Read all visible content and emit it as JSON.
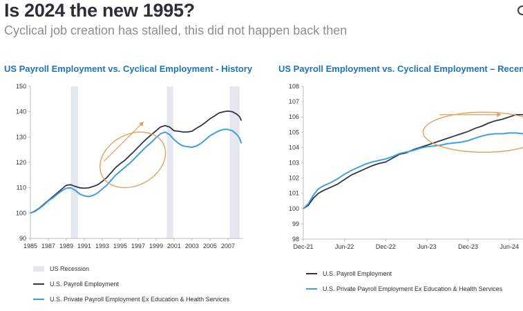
{
  "header": {
    "title": "Is 2024 the new 1995?",
    "subtitle": "Cyclical job creation has stalled, this did not happen back then"
  },
  "colors": {
    "payroll": "#2e3540",
    "private": "#3e9fe0",
    "recession": "#e4e7f0",
    "annotation": "#e1a05b",
    "axis": "#bdbdbd",
    "title": "#1f73b7"
  },
  "chart_data": [
    {
      "type": "line",
      "title": "US Payroll Employment vs. Cyclical Employment - History",
      "xlabel": "",
      "ylabel": "",
      "xlim": [
        1985,
        2008.7
      ],
      "ylim": [
        90,
        150
      ],
      "yticks": [
        90,
        100,
        110,
        120,
        130,
        140,
        150
      ],
      "xticks": [
        "1985",
        "1987",
        "1989",
        "1991",
        "1993",
        "1995",
        "1997",
        "1999",
        "2001",
        "2003",
        "2005",
        "2007"
      ],
      "recessions": [
        [
          1989.5,
          1990.3
        ],
        [
          2000.2,
          2000.9
        ],
        [
          2007.2,
          2008.3
        ]
      ],
      "legend": [
        {
          "label": "US Recession",
          "kind": "rect"
        },
        {
          "label": "U.S. Payroll Employment",
          "kind": "line"
        },
        {
          "label": "U.S. Private Payroll Employment Ex Education & Health Services",
          "kind": "line"
        }
      ],
      "series": [
        {
          "name": "U.S. Payroll Employment",
          "x": [
            1985,
            1985.5,
            1986,
            1986.5,
            1987,
            1987.5,
            1988,
            1988.5,
            1989,
            1989.5,
            1990,
            1990.5,
            1991,
            1991.5,
            1992,
            1992.5,
            1993,
            1993.5,
            1994,
            1994.5,
            1995,
            1995.5,
            1996,
            1996.5,
            1997,
            1997.5,
            1998,
            1998.5,
            1999,
            1999.5,
            2000,
            2000.5,
            2001,
            2001.5,
            2002,
            2002.5,
            2003,
            2003.5,
            2004,
            2004.5,
            2005,
            2005.5,
            2006,
            2006.5,
            2007,
            2007.5,
            2008,
            2008.3,
            2008.5
          ],
          "values": [
            100,
            100.8,
            102,
            103.5,
            105,
            106.5,
            108,
            109.5,
            111,
            111.2,
            110.5,
            110,
            109.8,
            110,
            110.5,
            111.2,
            112.5,
            114,
            116,
            118,
            119.5,
            120.8,
            122.5,
            124.2,
            126,
            127.8,
            129.5,
            131,
            132.5,
            134,
            134.5,
            134,
            132.5,
            132.3,
            132,
            132,
            132.3,
            133.5,
            134.5,
            135.8,
            137.2,
            138.3,
            139.5,
            140,
            140.3,
            140,
            139,
            138,
            136.5
          ]
        },
        {
          "name": "U.S. Private Payroll Employment Ex Education & Health Services",
          "x": [
            1985,
            1985.5,
            1986,
            1986.5,
            1987,
            1987.5,
            1988,
            1988.5,
            1989,
            1989.5,
            1990,
            1990.5,
            1991,
            1991.5,
            1992,
            1992.5,
            1993,
            1993.5,
            1994,
            1994.5,
            1995,
            1995.5,
            1996,
            1996.5,
            1997,
            1997.5,
            1998,
            1998.5,
            1999,
            1999.5,
            2000,
            2000.5,
            2001,
            2001.5,
            2002,
            2002.5,
            2003,
            2003.5,
            2004,
            2004.5,
            2005,
            2005.5,
            2006,
            2006.5,
            2007,
            2007.5,
            2008,
            2008.3,
            2008.5
          ],
          "values": [
            100,
            100.6,
            101.8,
            103.2,
            104.8,
            106,
            107.5,
            108.8,
            109.8,
            110,
            109,
            107.5,
            106.8,
            106.5,
            107,
            108,
            109.5,
            111,
            113,
            115,
            116.5,
            118,
            119.5,
            121.2,
            123,
            124.8,
            126.5,
            128,
            129.8,
            131.3,
            132,
            131,
            129,
            127.5,
            126.5,
            126.2,
            126,
            126.5,
            127.5,
            129,
            130.5,
            131.5,
            132.5,
            133,
            133,
            132.5,
            131,
            129.5,
            127.5
          ]
        }
      ],
      "annotation": {
        "arrow": {
          "from": [
            1993.2,
            120.5
          ],
          "to": [
            1997.6,
            136
          ]
        },
        "ellipse_center": [
          1996.4,
          121
        ]
      }
    },
    {
      "type": "line",
      "title": "US Payroll Employment vs. Cyclical Employment – Recent",
      "xlabel": "",
      "ylabel": "",
      "xlim": [
        0,
        32
      ],
      "ylim": [
        98,
        108
      ],
      "yticks": [
        98,
        99,
        100,
        101,
        102,
        103,
        104,
        105,
        106,
        107,
        108
      ],
      "xticks": [
        {
          "label": "Dec-21",
          "x": 0
        },
        {
          "label": "Jun-22",
          "x": 6
        },
        {
          "label": "Dec-22",
          "x": 12
        },
        {
          "label": "Jun-23",
          "x": 18
        },
        {
          "label": "Dec-23",
          "x": 24
        },
        {
          "label": "Jun-24",
          "x": 30
        }
      ],
      "legend": [
        {
          "label": "U.S. Payroll Employment",
          "kind": "line"
        },
        {
          "label": "U.S. Private Payroll Employment Ex Education & Health Services",
          "kind": "line"
        }
      ],
      "series": [
        {
          "name": "U.S. Payroll Employment",
          "x": [
            0,
            0.7,
            1.5,
            2.2,
            3,
            4,
            5,
            6,
            7,
            8,
            9,
            10,
            11,
            12,
            13,
            14,
            15,
            16,
            17,
            18,
            19,
            20,
            21,
            22,
            23,
            24,
            25,
            26,
            27,
            28,
            29,
            30,
            31,
            32
          ],
          "values": [
            100,
            100.2,
            100.7,
            101,
            101.2,
            101.4,
            101.6,
            101.9,
            102.2,
            102.4,
            102.6,
            102.8,
            102.95,
            103.05,
            103.3,
            103.55,
            103.65,
            103.85,
            104.0,
            104.15,
            104.3,
            104.45,
            104.6,
            104.75,
            104.9,
            105.05,
            105.25,
            105.4,
            105.6,
            105.75,
            105.85,
            106.0,
            106.15,
            106.15
          ]
        },
        {
          "name": "U.S. Private Payroll Employment Ex Education & Health Services",
          "x": [
            0,
            0.7,
            1.5,
            2.2,
            3,
            4,
            5,
            6,
            7,
            8,
            9,
            10,
            11,
            12,
            13,
            14,
            15,
            16,
            17,
            18,
            19,
            20,
            21,
            22,
            23,
            24,
            25,
            26,
            27,
            28,
            29,
            30,
            31,
            32
          ],
          "values": [
            100,
            100.3,
            100.9,
            101.3,
            101.5,
            101.7,
            101.95,
            102.25,
            102.5,
            102.7,
            102.9,
            103.05,
            103.15,
            103.25,
            103.4,
            103.6,
            103.7,
            103.8,
            103.95,
            104.05,
            104.1,
            104.15,
            104.25,
            104.3,
            104.35,
            104.45,
            104.6,
            104.75,
            104.85,
            104.9,
            104.9,
            104.95,
            104.95,
            104.9
          ]
        }
      ],
      "annotation": {
        "arrow": {
          "from": [
            19.8,
            106.15
          ],
          "to": [
            28.8,
            106.15
          ]
        },
        "ellipse_center": [
          26.3,
          105
        ]
      }
    }
  ]
}
